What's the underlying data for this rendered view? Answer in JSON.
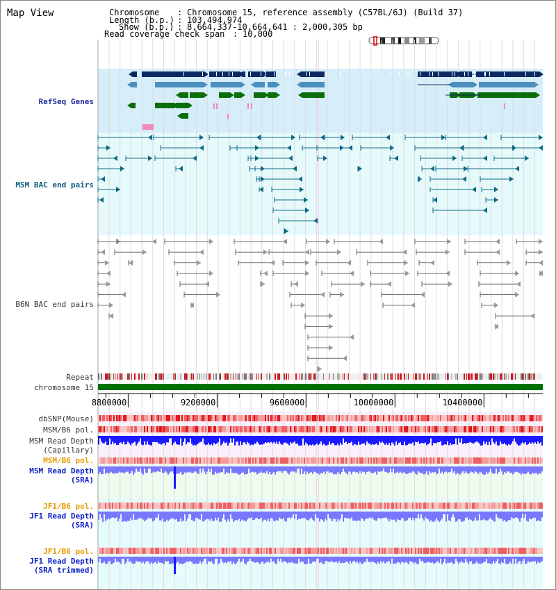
{
  "app": {
    "title": "Map View"
  },
  "info": {
    "rows": [
      {
        "key": "Chromosome",
        "value": "Chromosome 15, reference assembly (C57BL/6J) (Build 37)"
      },
      {
        "key": "Length (b.p.)",
        "value": "103,494,974"
      },
      {
        "key": "Show (b.p.)",
        "value": "8,664,337-10,664,641 : 2,000,305 bp"
      },
      {
        "key": "Read coverage check span",
        "value": "10,000"
      }
    ]
  },
  "region": {
    "start": 8664337,
    "end": 10664641
  },
  "axis": {
    "ticks": [
      "8800000",
      "9200000",
      "9600000",
      "10000000",
      "10400000"
    ]
  },
  "tracks": {
    "refseq": "RefSeq Genes",
    "msm_bac": "MSM BAC end pairs",
    "b6n_bac": "B6N BAC end pairs",
    "repeat": "Repeat",
    "chromosome": "chromosome 15",
    "dbsnp": "dbSNP(Mouse)",
    "msm_b6_pol_1": "MSM/B6 pol.",
    "msm_cap_1": "MSM Read Depth",
    "msm_cap_2": "(Capillary)",
    "msm_b6_pol_2": "MSM/B6 pol.",
    "msm_sra_1": "MSM Read Depth",
    "msm_sra_2": "(SRA)",
    "jf1_pol_1": "JF1/B6 pol.",
    "jf1_sra_1": "JF1 Read Depth",
    "jf1_sra_2": "(SRA)",
    "jf1_pol_2": "JF1/B6 pol.",
    "jf1_trim_1": "JF1 Read Depth",
    "jf1_trim_2": "(SRA trimmed)"
  },
  "colors": {
    "gene_navy": "#0b2a63",
    "gene_steel": "#4b8fbf",
    "gene_green": "#0b6e0b",
    "gene_pink": "#f28ab8",
    "msm_bac": "#0e6b86",
    "b6n_bac": "#666666",
    "chromosome": "#007000",
    "depth_dark": "#1a1aff",
    "depth_light": "#7878ff",
    "pol_red": "#e8191e",
    "refseq_bg": "#d6eefa",
    "msm_bg": "#e6f9fb",
    "b6n_bg": "#ffffff",
    "cap_bg": "#faf0fb",
    "sra_bg": "#eefbee",
    "jf1_bg": "#e6fbfb"
  }
}
